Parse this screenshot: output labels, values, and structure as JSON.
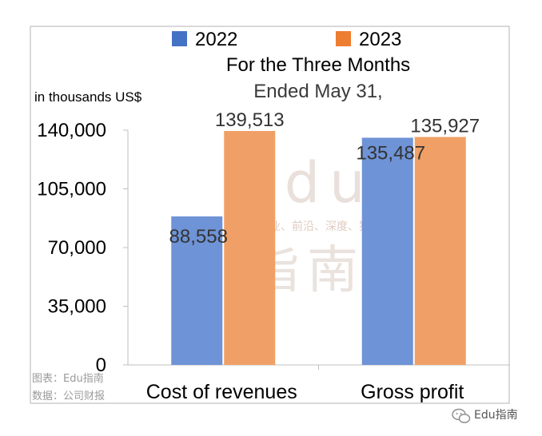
{
  "chart_data": {
    "type": "bar",
    "categories": [
      "Cost of revenues",
      "Gross profit"
    ],
    "series": [
      {
        "name": "2022",
        "color": "#6E93D6",
        "values": [
          88558,
          135487
        ]
      },
      {
        "name": "2023",
        "color": "#F0A066",
        "values": [
          139513,
          135927
        ]
      }
    ],
    "data_labels": {
      "2022": [
        "88,558",
        "135,487"
      ],
      "2023": [
        "139,513",
        "135,927"
      ]
    },
    "title_lines": [
      "For the Three Months",
      "Ended May 31,"
    ],
    "ylabel": "in thousands US$",
    "ylim": [
      0,
      140000
    ],
    "yticks": [
      0,
      35000,
      70000,
      105000,
      140000
    ],
    "ytick_labels": [
      "0",
      "35,000",
      "70,000",
      "105,000",
      "140,000"
    ],
    "grid": false,
    "legend": {
      "position": "top",
      "items": [
        {
          "label": "2022",
          "color": "#4472C4"
        },
        {
          "label": "2023",
          "color": "#ED7D31"
        }
      ]
    }
  },
  "watermark": {
    "big_top": "Edu",
    "small": "教育行业、前沿、深度、独家",
    "big_bottom": "指南"
  },
  "source_notes": [
    "图表：Edu指南",
    "数据：公司财报"
  ],
  "wechat_credit": "Edu指南",
  "wechat_icon": "wechat-icon"
}
